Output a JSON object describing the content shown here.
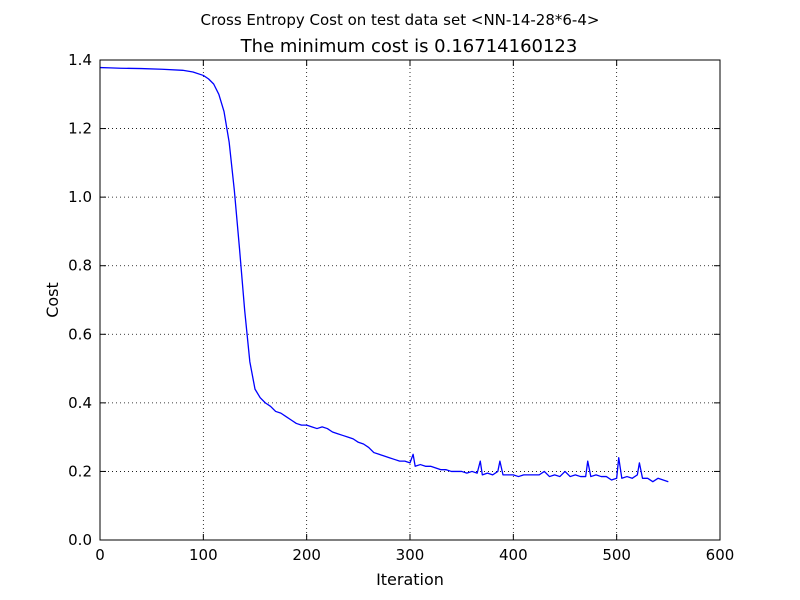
{
  "chart_data": {
    "type": "line",
    "suptitle": "Cross Entropy Cost on test data set <NN-14-28*6-4>",
    "title": "The minimum cost is 0.16714160123",
    "xlabel": "Iteration",
    "ylabel": "Cost",
    "xlim": [
      0,
      600
    ],
    "ylim": [
      0.0,
      1.4
    ],
    "x_ticks": [
      0,
      100,
      200,
      300,
      400,
      500,
      600
    ],
    "x_tick_labels": [
      "0",
      "100",
      "200",
      "300",
      "400",
      "500",
      "600"
    ],
    "y_ticks": [
      0.0,
      0.2,
      0.4,
      0.6,
      0.8,
      1.0,
      1.2,
      1.4
    ],
    "y_tick_labels": [
      "0.0",
      "0.2",
      "0.4",
      "0.6",
      "0.8",
      "1.0",
      "1.2",
      "1.4"
    ],
    "grid": true,
    "line_color": "#0000ff",
    "series": [
      {
        "x": [
          0,
          10,
          20,
          40,
          60,
          80,
          90,
          100,
          105,
          110,
          115,
          120,
          125,
          130,
          135,
          140,
          145,
          150,
          155,
          160,
          165,
          170,
          175,
          180,
          185,
          190,
          195,
          200,
          205,
          210,
          215,
          220,
          225,
          230,
          235,
          240,
          245,
          250,
          255,
          260,
          265,
          270,
          275,
          280,
          285,
          290,
          295,
          300,
          303,
          305,
          310,
          315,
          320,
          325,
          330,
          335,
          340,
          345,
          350,
          355,
          360,
          365,
          368,
          370,
          375,
          380,
          385,
          387,
          390,
          395,
          400,
          405,
          410,
          415,
          420,
          425,
          430,
          435,
          440,
          445,
          450,
          455,
          460,
          465,
          470,
          472,
          475,
          480,
          485,
          490,
          495,
          500,
          502,
          505,
          510,
          515,
          520,
          522,
          525,
          530,
          535,
          540,
          545,
          550
        ],
        "y": [
          1.378,
          1.377,
          1.376,
          1.375,
          1.373,
          1.37,
          1.365,
          1.355,
          1.345,
          1.33,
          1.3,
          1.25,
          1.16,
          1.02,
          0.85,
          0.67,
          0.52,
          0.44,
          0.415,
          0.4,
          0.39,
          0.375,
          0.37,
          0.36,
          0.35,
          0.34,
          0.335,
          0.335,
          0.33,
          0.325,
          0.33,
          0.325,
          0.315,
          0.31,
          0.305,
          0.3,
          0.295,
          0.285,
          0.28,
          0.27,
          0.255,
          0.25,
          0.245,
          0.24,
          0.235,
          0.23,
          0.23,
          0.225,
          0.25,
          0.215,
          0.22,
          0.215,
          0.215,
          0.21,
          0.205,
          0.205,
          0.2,
          0.2,
          0.2,
          0.195,
          0.2,
          0.195,
          0.23,
          0.19,
          0.195,
          0.19,
          0.2,
          0.23,
          0.19,
          0.19,
          0.19,
          0.185,
          0.19,
          0.19,
          0.19,
          0.19,
          0.2,
          0.185,
          0.19,
          0.185,
          0.2,
          0.185,
          0.19,
          0.185,
          0.185,
          0.23,
          0.185,
          0.19,
          0.185,
          0.185,
          0.175,
          0.18,
          0.24,
          0.18,
          0.185,
          0.18,
          0.19,
          0.225,
          0.18,
          0.18,
          0.17,
          0.18,
          0.175,
          0.17
        ]
      }
    ]
  }
}
